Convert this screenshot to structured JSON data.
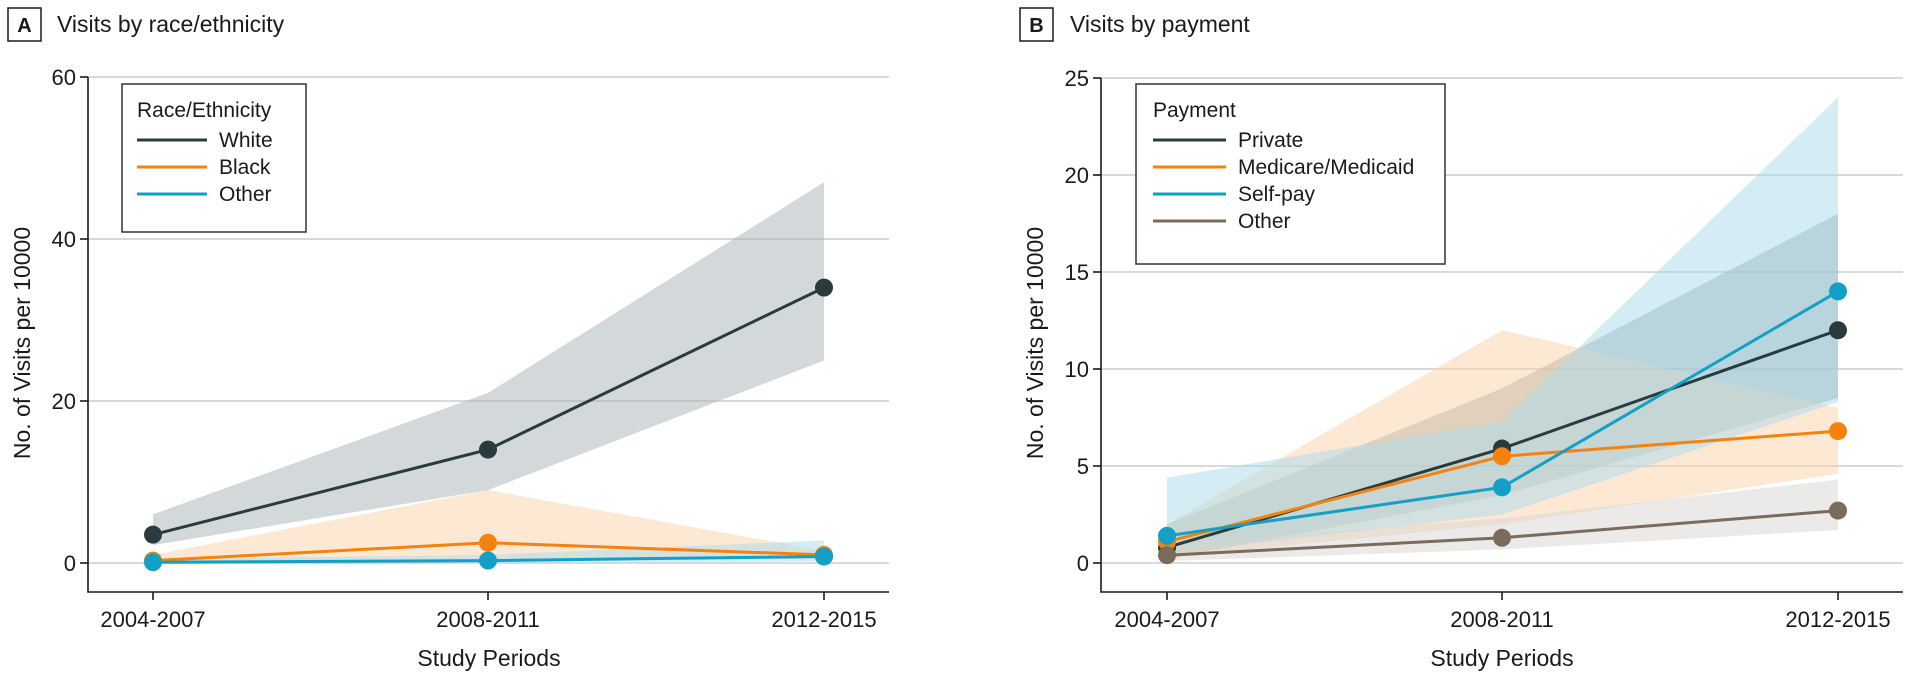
{
  "chart_data": [
    {
      "type": "line",
      "panel_letter": "A",
      "title": "Visits by race/ethnicity",
      "xlabel": "Study Periods",
      "ylabel": "No. of Visits per 10000",
      "categories": [
        "2004-2007",
        "2008-2011",
        "2012-2015"
      ],
      "ylim": [
        0,
        60
      ],
      "yticks": [
        0,
        20,
        40,
        60
      ],
      "grid": true,
      "legend": {
        "title": "Race/Ethnicity",
        "placement": "top-left"
      },
      "series": [
        {
          "name": "White",
          "color": "#2a3b3d",
          "band_color": "#a8b3b5",
          "values": [
            3.5,
            14,
            34
          ],
          "ci_lower": [
            2.2,
            9,
            25
          ],
          "ci_upper": [
            6,
            21,
            47
          ]
        },
        {
          "name": "Black",
          "color": "#f5820d",
          "band_color": "#fcd2aa",
          "values": [
            0.3,
            2.5,
            1.0
          ],
          "ci_lower": [
            0,
            0.3,
            0.5
          ],
          "ci_upper": [
            1.0,
            9,
            1.5
          ]
        },
        {
          "name": "Other",
          "color": "#12a0c6",
          "band_color": "#a9dceb",
          "values": [
            0.1,
            0.3,
            0.8
          ],
          "ci_lower": [
            0,
            0,
            0.2
          ],
          "ci_upper": [
            0.5,
            1.0,
            2.8
          ]
        }
      ]
    },
    {
      "type": "line",
      "panel_letter": "B",
      "title": "Visits by payment",
      "xlabel": "Study Periods",
      "ylabel": "No. of Visits per 10000",
      "categories": [
        "2004-2007",
        "2008-2011",
        "2012-2015"
      ],
      "ylim": [
        0,
        25
      ],
      "yticks": [
        0,
        5,
        10,
        15,
        20,
        25
      ],
      "grid": true,
      "legend": {
        "title": "Payment",
        "placement": "top-left"
      },
      "series": [
        {
          "name": "Private",
          "color": "#2a3b3d",
          "band_color": "#8fa09f",
          "values": [
            0.8,
            5.9,
            12.0
          ],
          "ci_lower": [
            0.2,
            3.5,
            8.5
          ],
          "ci_upper": [
            2.0,
            9.0,
            18.0
          ]
        },
        {
          "name": "Medicare/Medicaid",
          "color": "#f5820d",
          "band_color": "#fcd2aa",
          "values": [
            1.1,
            5.5,
            6.8
          ],
          "ci_lower": [
            0.3,
            2.0,
            4.6
          ],
          "ci_upper": [
            2.0,
            12.0,
            8.0
          ]
        },
        {
          "name": "Self-pay",
          "color": "#12a0c6",
          "band_color": "#a9dceb",
          "values": [
            1.4,
            3.9,
            14.0
          ],
          "ci_lower": [
            0.5,
            2.5,
            8.3
          ],
          "ci_upper": [
            4.4,
            7.3,
            24.0
          ]
        },
        {
          "name": "Other",
          "color": "#7a6c5c",
          "band_color": "#d8d6d3",
          "values": [
            0.4,
            1.3,
            2.7
          ],
          "ci_lower": [
            0.1,
            0.7,
            1.7
          ],
          "ci_upper": [
            1.0,
            2.3,
            4.3
          ]
        }
      ]
    }
  ]
}
